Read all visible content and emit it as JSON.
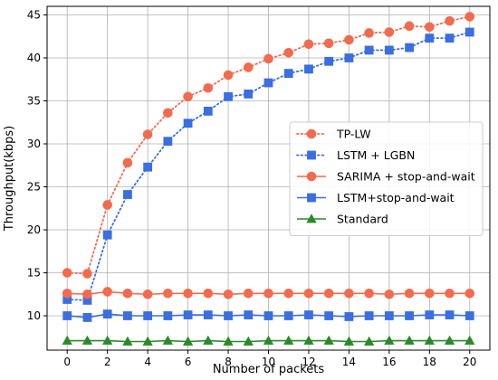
{
  "chart_data": {
    "type": "line",
    "xlabel": "Number of packets",
    "ylabel": "Throughput(kbps)",
    "xlim": [
      -1,
      21
    ],
    "ylim": [
      6,
      46
    ],
    "xticks": [
      0,
      2,
      4,
      6,
      8,
      10,
      12,
      14,
      16,
      18,
      20
    ],
    "yticks": [
      10,
      15,
      20,
      25,
      30,
      35,
      40,
      45
    ],
    "grid": true,
    "legend_position": "center-right",
    "x": [
      0,
      1,
      2,
      3,
      4,
      5,
      6,
      7,
      8,
      9,
      10,
      11,
      12,
      13,
      14,
      15,
      16,
      17,
      18,
      19,
      20
    ],
    "series": [
      {
        "name": "TP-LW",
        "color": "#f26b4f",
        "line": "dotted",
        "marker": "circle",
        "values": [
          15.0,
          14.9,
          22.9,
          27.8,
          31.1,
          33.6,
          35.5,
          36.5,
          38.0,
          38.9,
          39.9,
          40.6,
          41.6,
          41.7,
          42.1,
          42.9,
          43.0,
          43.7,
          43.6,
          44.3,
          44.8
        ]
      },
      {
        "name": "LSTM + LGBN",
        "color": "#3b6ee0",
        "line": "dotted",
        "marker": "square",
        "values": [
          11.9,
          11.8,
          19.4,
          24.1,
          27.3,
          30.3,
          32.4,
          33.8,
          35.5,
          35.8,
          37.1,
          38.2,
          38.7,
          39.6,
          40.0,
          40.9,
          40.9,
          41.2,
          42.3,
          42.3,
          43.0
        ]
      },
      {
        "name": "SARIMA + stop-and-wait",
        "color": "#f26b4f",
        "line": "solid",
        "marker": "circle",
        "values": [
          12.6,
          12.5,
          12.8,
          12.6,
          12.5,
          12.6,
          12.6,
          12.6,
          12.5,
          12.6,
          12.6,
          12.6,
          12.6,
          12.6,
          12.6,
          12.6,
          12.5,
          12.6,
          12.6,
          12.6,
          12.6
        ]
      },
      {
        "name": "LSTM+stop-and-wait",
        "color": "#3b6ee0",
        "line": "solid",
        "marker": "square",
        "values": [
          10.0,
          9.8,
          10.2,
          10.0,
          10.0,
          10.0,
          10.1,
          10.1,
          10.0,
          10.1,
          10.0,
          10.0,
          10.1,
          10.0,
          9.9,
          10.0,
          10.0,
          10.0,
          10.1,
          10.1,
          10.0
        ]
      },
      {
        "name": "Standard",
        "color": "#2a8a2a",
        "line": "solid",
        "marker": "triangle",
        "values": [
          7.1,
          7.1,
          7.1,
          7.0,
          7.0,
          7.1,
          7.0,
          7.1,
          7.0,
          7.0,
          7.1,
          7.1,
          7.1,
          7.1,
          7.0,
          7.0,
          7.1,
          7.1,
          7.1,
          7.1,
          7.1
        ]
      }
    ]
  }
}
